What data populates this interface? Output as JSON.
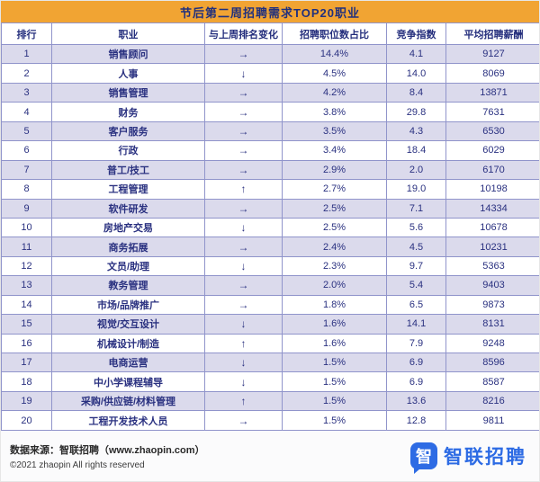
{
  "title": "节后第二周招聘需求TOP20职业",
  "chart_data": {
    "type": "table",
    "title": "节后第二周招聘需求TOP20职业",
    "columns": [
      "排行",
      "职业",
      "与上周排名变化",
      "招聘职位数占比",
      "竞争指数",
      "平均招聘薪酬"
    ],
    "rows": [
      [
        "1",
        "销售顾问",
        "→",
        "14.4%",
        "4.1",
        "9127"
      ],
      [
        "2",
        "人事",
        "↓",
        "4.5%",
        "14.0",
        "8069"
      ],
      [
        "3",
        "销售管理",
        "→",
        "4.2%",
        "8.4",
        "13871"
      ],
      [
        "4",
        "财务",
        "→",
        "3.8%",
        "29.8",
        "7631"
      ],
      [
        "5",
        "客户服务",
        "→",
        "3.5%",
        "4.3",
        "6530"
      ],
      [
        "6",
        "行政",
        "→",
        "3.4%",
        "18.4",
        "6029"
      ],
      [
        "7",
        "普工/技工",
        "→",
        "2.9%",
        "2.0",
        "6170"
      ],
      [
        "8",
        "工程管理",
        "↑",
        "2.7%",
        "19.0",
        "10198"
      ],
      [
        "9",
        "软件研发",
        "→",
        "2.5%",
        "7.1",
        "14334"
      ],
      [
        "10",
        "房地产交易",
        "↓",
        "2.5%",
        "5.6",
        "10678"
      ],
      [
        "11",
        "商务拓展",
        "→",
        "2.4%",
        "4.5",
        "10231"
      ],
      [
        "12",
        "文员/助理",
        "↓",
        "2.3%",
        "9.7",
        "5363"
      ],
      [
        "13",
        "教务管理",
        "→",
        "2.0%",
        "5.4",
        "9403"
      ],
      [
        "14",
        "市场/品牌推广",
        "→",
        "1.8%",
        "6.5",
        "9873"
      ],
      [
        "15",
        "视觉/交互设计",
        "↓",
        "1.6%",
        "14.1",
        "8131"
      ],
      [
        "16",
        "机械设计/制造",
        "↑",
        "1.6%",
        "7.9",
        "9248"
      ],
      [
        "17",
        "电商运营",
        "↓",
        "1.5%",
        "6.9",
        "8596"
      ],
      [
        "18",
        "中小学课程辅导",
        "↓",
        "1.5%",
        "6.9",
        "8587"
      ],
      [
        "19",
        "采购/供应链/材料管理",
        "↑",
        "1.5%",
        "13.6",
        "8216"
      ],
      [
        "20",
        "工程开发技术人员",
        "→",
        "1.5%",
        "12.8",
        "9811"
      ]
    ]
  },
  "footer": {
    "source": "数据来源：智联招聘（www.zhaopin.com）",
    "copyright": "©2021 zhaopin All rights reserved",
    "logo_glyph": "智",
    "logo_text": "智联招聘"
  },
  "colors": {
    "title_bg": "#F1A433",
    "title_text": "#20307E",
    "header_text": "#232D7C",
    "cell_text": "#2A3180",
    "row_alt": "#DBDAEC",
    "row_bg": "#FFFFFF",
    "border": "#9094CB",
    "footer_bg": "#FBFBFC",
    "logo_blue": "#2D6BE4"
  }
}
